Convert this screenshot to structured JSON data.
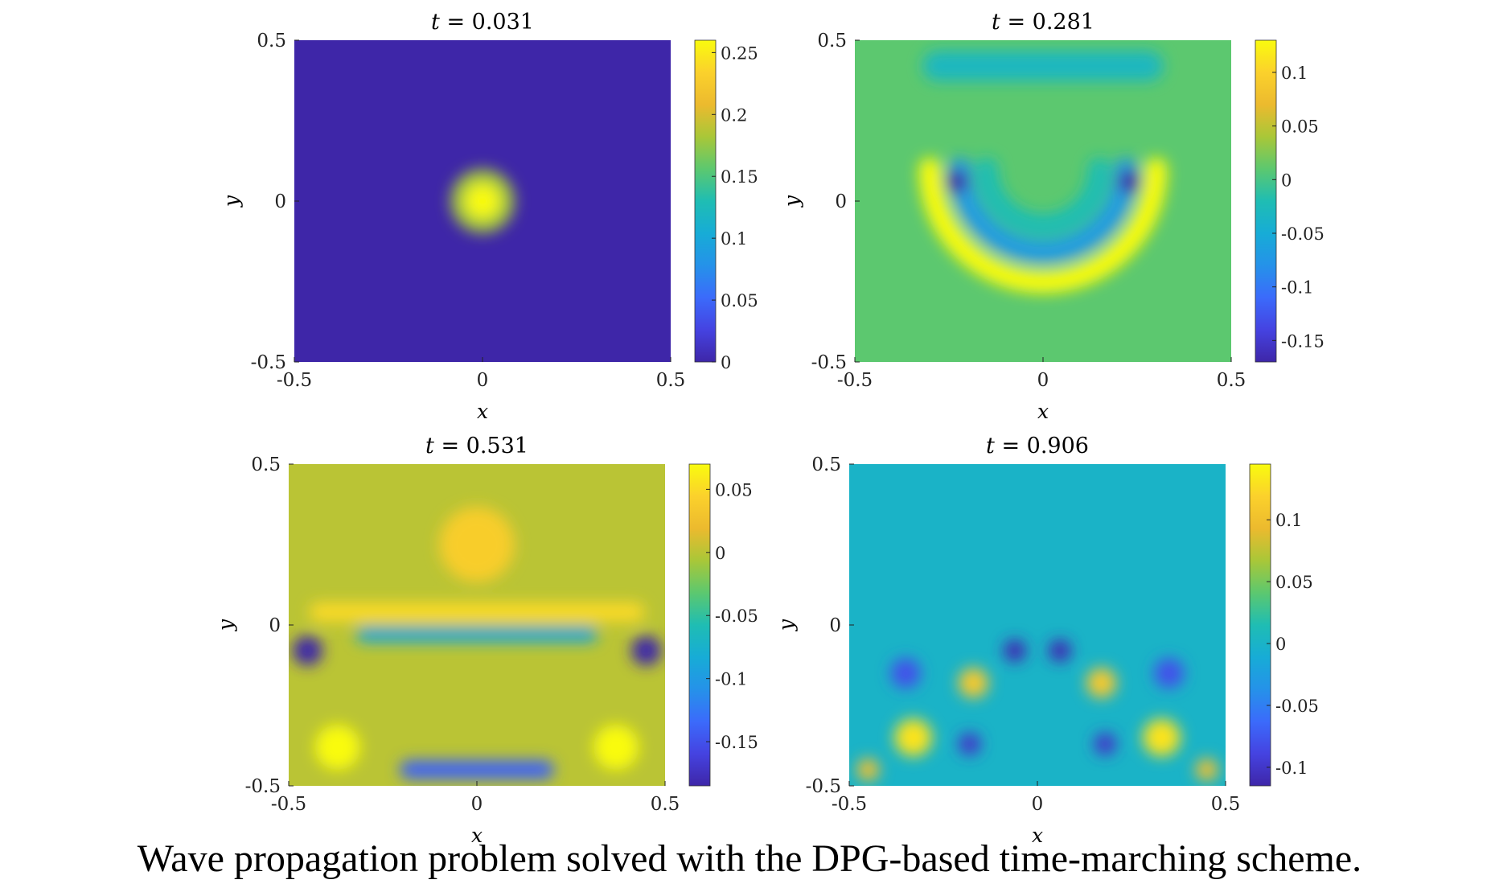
{
  "caption": "Wave propagation problem solved with the DPG-based time-marching scheme.",
  "chart_data": [
    {
      "type": "heatmap",
      "title": "t = 0.031",
      "title_var": "t",
      "title_value": "0.031",
      "xlabel": "x",
      "ylabel": "y",
      "xlim": [
        -0.5,
        0.5
      ],
      "ylim": [
        -0.5,
        0.5
      ],
      "xticks": [
        "-0.5",
        "0",
        "0.5"
      ],
      "yticks": [
        "-0.5",
        "0",
        "0.5"
      ],
      "colorbar": {
        "min": 0,
        "max": 0.26,
        "ticks": [
          "0",
          "0.05",
          "0.1",
          "0.15",
          "0.2",
          "0.25"
        ],
        "tick_values": [
          0,
          0.05,
          0.1,
          0.15,
          0.2,
          0.25
        ]
      },
      "colormap": "parula",
      "background_value": 0.0,
      "features": [
        {
          "shape": "ring",
          "cx": 0.0,
          "cy": 0.0,
          "r_outer": 0.085,
          "value": 0.18
        },
        {
          "shape": "spot",
          "cx": 0.0,
          "cy": 0.0,
          "r": 0.045,
          "value": 0.26
        }
      ]
    },
    {
      "type": "heatmap",
      "title": "t = 0.281",
      "title_var": "t",
      "title_value": "0.281",
      "xlabel": "x",
      "ylabel": "y",
      "xlim": [
        -0.5,
        0.5
      ],
      "ylim": [
        -0.5,
        0.5
      ],
      "xticks": [
        "-0.5",
        "0",
        "0.5"
      ],
      "yticks": [
        "-0.5",
        "0",
        "0.5"
      ],
      "colorbar": {
        "min": -0.17,
        "max": 0.13,
        "ticks": [
          "-0.15",
          "-0.1",
          "-0.05",
          "0",
          "0.05",
          "0.1"
        ],
        "tick_values": [
          -0.15,
          -0.1,
          -0.05,
          0,
          0.05,
          0.1
        ]
      },
      "colormap": "parula",
      "background_value": 0.01,
      "features": [
        {
          "shape": "band",
          "cy": 0.42,
          "x1": -0.28,
          "x2": 0.28,
          "w": 0.08,
          "value": -0.03
        },
        {
          "shape": "arc",
          "cx": 0.0,
          "cy": 0.1,
          "r": 0.3,
          "value": 0.13
        },
        {
          "shape": "arc",
          "cx": 0.0,
          "cy": 0.1,
          "r": 0.22,
          "value": -0.07
        },
        {
          "shape": "arc",
          "cx": 0.0,
          "cy": 0.1,
          "r": 0.15,
          "value": -0.02
        },
        {
          "shape": "spot",
          "cx": -0.23,
          "cy": 0.06,
          "r": 0.03,
          "value": -0.17
        },
        {
          "shape": "spot",
          "cx": 0.23,
          "cy": 0.06,
          "r": 0.03,
          "value": -0.17
        }
      ]
    },
    {
      "type": "heatmap",
      "title": "t = 0.531",
      "title_var": "t",
      "title_value": "0.531",
      "xlabel": "x",
      "ylabel": "y",
      "xlim": [
        -0.5,
        0.5
      ],
      "ylim": [
        -0.5,
        0.5
      ],
      "xticks": [
        "-0.5",
        "0",
        "0.5"
      ],
      "yticks": [
        "-0.5",
        "0",
        "0.5"
      ],
      "colorbar": {
        "min": -0.185,
        "max": 0.07,
        "ticks": [
          "-0.15",
          "-0.1",
          "-0.05",
          "0",
          "0.05"
        ],
        "tick_values": [
          -0.15,
          -0.1,
          -0.05,
          0,
          0.05
        ]
      },
      "colormap": "parula",
      "background_value": 0.0,
      "features": [
        {
          "shape": "spot",
          "cx": 0.0,
          "cy": 0.25,
          "r": 0.1,
          "value": 0.04
        },
        {
          "shape": "band",
          "cy": 0.04,
          "x1": -0.42,
          "x2": 0.42,
          "w": 0.05,
          "value": 0.05
        },
        {
          "shape": "band",
          "cy": -0.03,
          "x1": -0.3,
          "x2": 0.3,
          "w": 0.04,
          "value": -0.09
        },
        {
          "shape": "band",
          "cy": -0.45,
          "x1": -0.18,
          "x2": 0.18,
          "w": 0.05,
          "value": -0.14
        },
        {
          "shape": "spot",
          "cx": -0.45,
          "cy": -0.08,
          "r": 0.04,
          "value": -0.185
        },
        {
          "shape": "spot",
          "cx": 0.45,
          "cy": -0.08,
          "r": 0.04,
          "value": -0.185
        },
        {
          "shape": "spot",
          "cx": -0.37,
          "cy": -0.38,
          "r": 0.06,
          "value": 0.07
        },
        {
          "shape": "spot",
          "cx": 0.37,
          "cy": -0.38,
          "r": 0.06,
          "value": 0.07
        }
      ]
    },
    {
      "type": "heatmap",
      "title": "t = 0.906",
      "title_var": "t",
      "title_value": "0.906",
      "xlabel": "x",
      "ylabel": "y",
      "xlim": [
        -0.5,
        0.5
      ],
      "ylim": [
        -0.5,
        0.5
      ],
      "xticks": [
        "-0.5",
        "0",
        "0.5"
      ],
      "yticks": [
        "-0.5",
        "0",
        "0.5"
      ],
      "colorbar": {
        "min": -0.115,
        "max": 0.145,
        "ticks": [
          "-0.1",
          "-0.05",
          "0",
          "0.05",
          "0.1"
        ],
        "tick_values": [
          -0.1,
          -0.05,
          0,
          0.05,
          0.1
        ]
      },
      "colormap": "parula",
      "background_value": 0.0,
      "features": [
        {
          "shape": "spot",
          "cx": -0.06,
          "cy": -0.08,
          "r": 0.03,
          "value": -0.11
        },
        {
          "shape": "spot",
          "cx": 0.06,
          "cy": -0.08,
          "r": 0.03,
          "value": -0.11
        },
        {
          "shape": "spot",
          "cx": -0.17,
          "cy": -0.18,
          "r": 0.04,
          "value": 0.11
        },
        {
          "shape": "spot",
          "cx": 0.17,
          "cy": -0.18,
          "r": 0.04,
          "value": 0.11
        },
        {
          "shape": "spot",
          "cx": -0.33,
          "cy": -0.35,
          "r": 0.05,
          "value": 0.13
        },
        {
          "shape": "spot",
          "cx": 0.33,
          "cy": -0.35,
          "r": 0.05,
          "value": 0.13
        },
        {
          "shape": "spot",
          "cx": -0.18,
          "cy": -0.37,
          "r": 0.03,
          "value": -0.1
        },
        {
          "shape": "spot",
          "cx": 0.18,
          "cy": -0.37,
          "r": 0.03,
          "value": -0.1
        },
        {
          "shape": "spot",
          "cx": -0.45,
          "cy": -0.45,
          "r": 0.03,
          "value": 0.1
        },
        {
          "shape": "spot",
          "cx": 0.45,
          "cy": -0.45,
          "r": 0.03,
          "value": 0.1
        },
        {
          "shape": "spot",
          "cx": -0.35,
          "cy": -0.15,
          "r": 0.04,
          "value": -0.08
        },
        {
          "shape": "spot",
          "cx": 0.35,
          "cy": -0.15,
          "r": 0.04,
          "value": -0.08
        }
      ]
    }
  ]
}
